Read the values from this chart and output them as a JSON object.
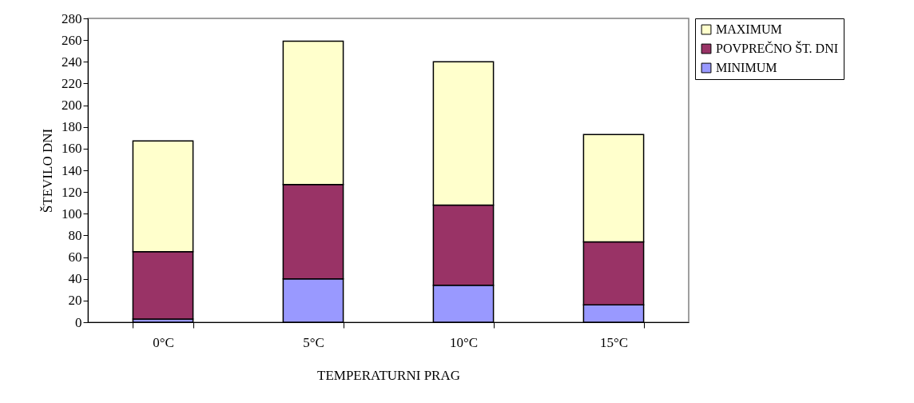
{
  "chart_data": {
    "type": "bar",
    "stacked": true,
    "xlabel": "TEMPERATURNI PRAG",
    "ylabel": "ŠTEVILO DNI",
    "categories": [
      "0°C",
      "5°C",
      "10°C",
      "15°C"
    ],
    "series": [
      {
        "name": "MINIMUM",
        "color": "#9999ff",
        "values": [
          3,
          40,
          34,
          16
        ]
      },
      {
        "name": "POVPREČNO ŠT. DNI",
        "color": "#993366",
        "values": [
          62,
          87,
          74,
          58
        ]
      },
      {
        "name": "MAXIMUM",
        "color": "#ffffcc",
        "values": [
          102,
          132,
          132,
          99
        ]
      }
    ],
    "ylim": [
      0,
      280
    ],
    "yticks": [
      0,
      20,
      40,
      60,
      80,
      100,
      120,
      140,
      160,
      180,
      200,
      220,
      240,
      260,
      280
    ],
    "grid": false,
    "legend": "right"
  }
}
